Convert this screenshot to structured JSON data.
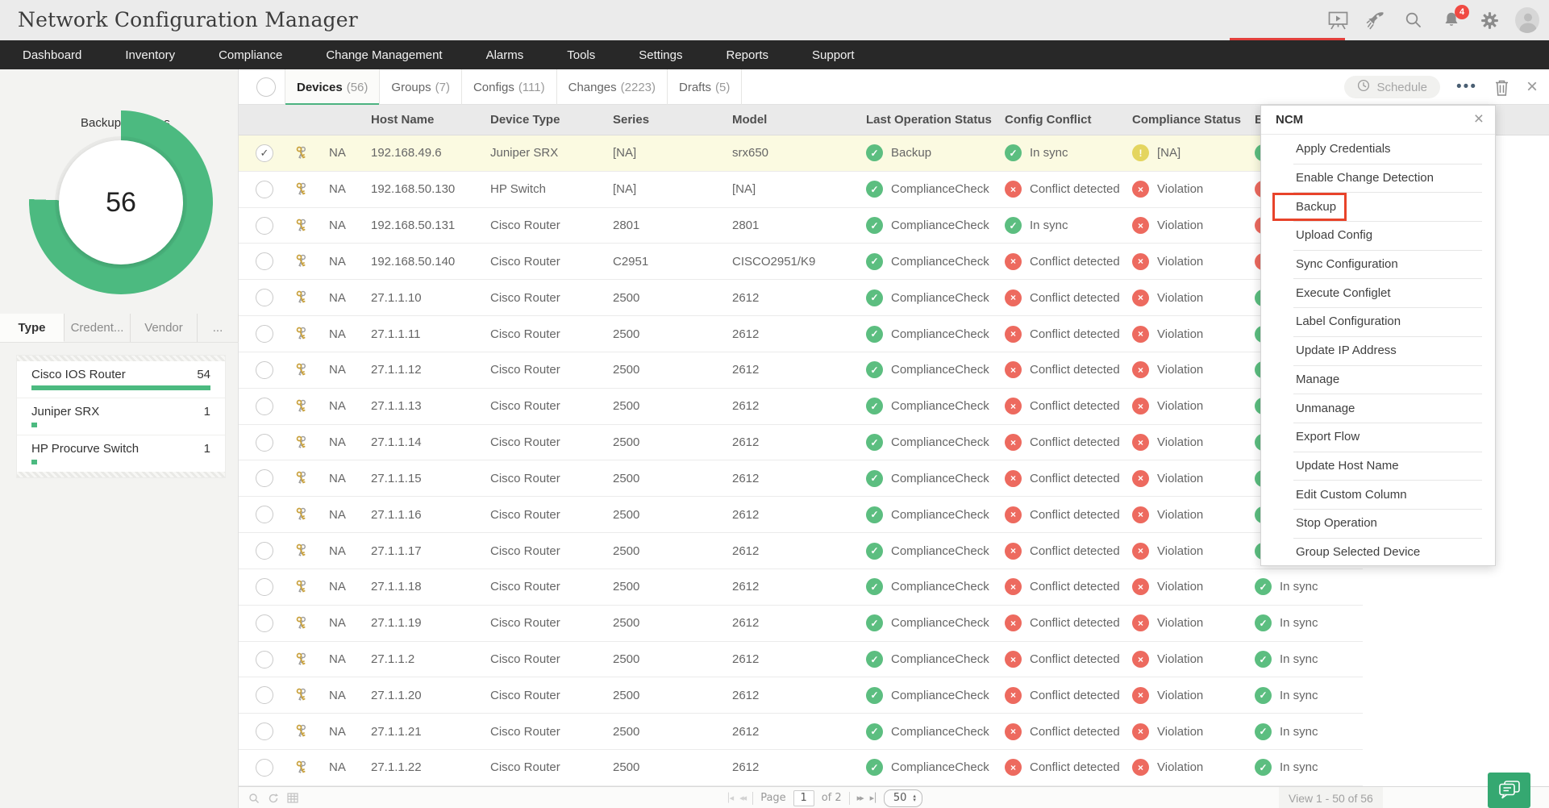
{
  "app": {
    "title": "Network Configuration Manager",
    "notification_count": "4"
  },
  "header_icons": [
    {
      "name": "presentation-icon"
    },
    {
      "name": "rocket-icon"
    },
    {
      "name": "search-icon"
    },
    {
      "name": "bell-icon"
    },
    {
      "name": "gear-icon"
    },
    {
      "name": "user-avatar"
    }
  ],
  "nav": {
    "items": [
      "Dashboard",
      "Inventory",
      "Compliance",
      "Change Management",
      "Alarms",
      "Tools",
      "Settings",
      "Reports",
      "Support"
    ]
  },
  "tabs": [
    {
      "label": "Devices",
      "count": "(56)",
      "active": true
    },
    {
      "label": "Groups",
      "count": "(7)",
      "active": false
    },
    {
      "label": "Configs",
      "count": "(111)",
      "active": false
    },
    {
      "label": "Changes",
      "count": "(2223)",
      "active": false
    },
    {
      "label": "Drafts",
      "count": "(5)",
      "active": false
    }
  ],
  "toolbar": {
    "schedule_label": "Schedule"
  },
  "sidebar": {
    "chart": {
      "label": "Backup Success",
      "value": "56",
      "sweep_deg": 272,
      "color": "#4cba80"
    },
    "tabs": [
      {
        "label": "Type",
        "active": true
      },
      {
        "label": "Credent...",
        "active": false
      },
      {
        "label": "Vendor",
        "active": false
      },
      {
        "label": "...",
        "active": false
      }
    ],
    "legend": [
      {
        "name": "Cisco IOS Router",
        "count": "54",
        "bar_pct": 100
      },
      {
        "name": "Juniper SRX",
        "count": "1",
        "bar_pct": 3
      },
      {
        "name": "HP Procurve Switch",
        "count": "1",
        "bar_pct": 3
      }
    ]
  },
  "chart_data": {
    "type": "pie",
    "title": "Backup Success",
    "values": [
      {
        "label": "Backup Success",
        "value": 56
      }
    ],
    "breakdown_by_type": [
      {
        "label": "Cisco IOS Router",
        "value": 54
      },
      {
        "label": "Juniper SRX",
        "value": 1
      },
      {
        "label": "HP Procurve Switch",
        "value": 1
      }
    ]
  },
  "table": {
    "columns": [
      "Host Name",
      "Device Type",
      "Series",
      "Model",
      "Last Operation Status",
      "Config Conflict",
      "Compliance Status",
      "Baseline"
    ],
    "rows": [
      {
        "selected": true,
        "na": "NA",
        "host": "192.168.49.6",
        "device_type": "Juniper SRX",
        "series": "[NA]",
        "model": "srx650",
        "last_op": {
          "status": "green",
          "label": "Backup"
        },
        "config_conflict": {
          "status": "green",
          "label": "In sync"
        },
        "compliance": {
          "status": "yellow",
          "label": "[NA]"
        },
        "baseline": {
          "status": "green",
          "label": ""
        }
      },
      {
        "selected": false,
        "na": "NA",
        "host": "192.168.50.130",
        "device_type": "HP Switch",
        "series": "[NA]",
        "model": "[NA]",
        "last_op": {
          "status": "green",
          "label": "ComplianceCheck"
        },
        "config_conflict": {
          "status": "red",
          "label": "Conflict detected"
        },
        "compliance": {
          "status": "red",
          "label": "Violation"
        },
        "baseline": {
          "status": "red",
          "label": ""
        }
      },
      {
        "selected": false,
        "na": "NA",
        "host": "192.168.50.131",
        "device_type": "Cisco Router",
        "series": "2801",
        "model": "2801",
        "last_op": {
          "status": "green",
          "label": "ComplianceCheck"
        },
        "config_conflict": {
          "status": "green",
          "label": "In sync"
        },
        "compliance": {
          "status": "red",
          "label": "Violation"
        },
        "baseline": {
          "status": "red",
          "label": ""
        }
      },
      {
        "selected": false,
        "na": "NA",
        "host": "192.168.50.140",
        "device_type": "Cisco Router",
        "series": "C2951",
        "model": "CISCO2951/K9",
        "last_op": {
          "status": "green",
          "label": "ComplianceCheck"
        },
        "config_conflict": {
          "status": "red",
          "label": "Conflict detected"
        },
        "compliance": {
          "status": "red",
          "label": "Violation"
        },
        "baseline": {
          "status": "red",
          "label": ""
        }
      },
      {
        "selected": false,
        "na": "NA",
        "host": "27.1.1.10",
        "device_type": "Cisco Router",
        "series": "2500",
        "model": "2612",
        "last_op": {
          "status": "green",
          "label": "ComplianceCheck"
        },
        "config_conflict": {
          "status": "red",
          "label": "Conflict detected"
        },
        "compliance": {
          "status": "red",
          "label": "Violation"
        },
        "baseline": {
          "status": "green",
          "label": ""
        }
      },
      {
        "selected": false,
        "na": "NA",
        "host": "27.1.1.11",
        "device_type": "Cisco Router",
        "series": "2500",
        "model": "2612",
        "last_op": {
          "status": "green",
          "label": "ComplianceCheck"
        },
        "config_conflict": {
          "status": "red",
          "label": "Conflict detected"
        },
        "compliance": {
          "status": "red",
          "label": "Violation"
        },
        "baseline": {
          "status": "green",
          "label": ""
        }
      },
      {
        "selected": false,
        "na": "NA",
        "host": "27.1.1.12",
        "device_type": "Cisco Router",
        "series": "2500",
        "model": "2612",
        "last_op": {
          "status": "green",
          "label": "ComplianceCheck"
        },
        "config_conflict": {
          "status": "red",
          "label": "Conflict detected"
        },
        "compliance": {
          "status": "red",
          "label": "Violation"
        },
        "baseline": {
          "status": "green",
          "label": ""
        }
      },
      {
        "selected": false,
        "na": "NA",
        "host": "27.1.1.13",
        "device_type": "Cisco Router",
        "series": "2500",
        "model": "2612",
        "last_op": {
          "status": "green",
          "label": "ComplianceCheck"
        },
        "config_conflict": {
          "status": "red",
          "label": "Conflict detected"
        },
        "compliance": {
          "status": "red",
          "label": "Violation"
        },
        "baseline": {
          "status": "green",
          "label": ""
        }
      },
      {
        "selected": false,
        "na": "NA",
        "host": "27.1.1.14",
        "device_type": "Cisco Router",
        "series": "2500",
        "model": "2612",
        "last_op": {
          "status": "green",
          "label": "ComplianceCheck"
        },
        "config_conflict": {
          "status": "red",
          "label": "Conflict detected"
        },
        "compliance": {
          "status": "red",
          "label": "Violation"
        },
        "baseline": {
          "status": "green",
          "label": ""
        }
      },
      {
        "selected": false,
        "na": "NA",
        "host": "27.1.1.15",
        "device_type": "Cisco Router",
        "series": "2500",
        "model": "2612",
        "last_op": {
          "status": "green",
          "label": "ComplianceCheck"
        },
        "config_conflict": {
          "status": "red",
          "label": "Conflict detected"
        },
        "compliance": {
          "status": "red",
          "label": "Violation"
        },
        "baseline": {
          "status": "green",
          "label": ""
        }
      },
      {
        "selected": false,
        "na": "NA",
        "host": "27.1.1.16",
        "device_type": "Cisco Router",
        "series": "2500",
        "model": "2612",
        "last_op": {
          "status": "green",
          "label": "ComplianceCheck"
        },
        "config_conflict": {
          "status": "red",
          "label": "Conflict detected"
        },
        "compliance": {
          "status": "red",
          "label": "Violation"
        },
        "baseline": {
          "status": "green",
          "label": ""
        }
      },
      {
        "selected": false,
        "na": "NA",
        "host": "27.1.1.17",
        "device_type": "Cisco Router",
        "series": "2500",
        "model": "2612",
        "last_op": {
          "status": "green",
          "label": "ComplianceCheck"
        },
        "config_conflict": {
          "status": "red",
          "label": "Conflict detected"
        },
        "compliance": {
          "status": "red",
          "label": "Violation"
        },
        "baseline": {
          "status": "green",
          "label": ""
        }
      },
      {
        "selected": false,
        "na": "NA",
        "host": "27.1.1.18",
        "device_type": "Cisco Router",
        "series": "2500",
        "model": "2612",
        "last_op": {
          "status": "green",
          "label": "ComplianceCheck"
        },
        "config_conflict": {
          "status": "red",
          "label": "Conflict detected"
        },
        "compliance": {
          "status": "red",
          "label": "Violation"
        },
        "baseline": {
          "status": "green",
          "label": "In sync"
        }
      },
      {
        "selected": false,
        "na": "NA",
        "host": "27.1.1.19",
        "device_type": "Cisco Router",
        "series": "2500",
        "model": "2612",
        "last_op": {
          "status": "green",
          "label": "ComplianceCheck"
        },
        "config_conflict": {
          "status": "red",
          "label": "Conflict detected"
        },
        "compliance": {
          "status": "red",
          "label": "Violation"
        },
        "baseline": {
          "status": "green",
          "label": "In sync"
        }
      },
      {
        "selected": false,
        "na": "NA",
        "host": "27.1.1.2",
        "device_type": "Cisco Router",
        "series": "2500",
        "model": "2612",
        "last_op": {
          "status": "green",
          "label": "ComplianceCheck"
        },
        "config_conflict": {
          "status": "red",
          "label": "Conflict detected"
        },
        "compliance": {
          "status": "red",
          "label": "Violation"
        },
        "baseline": {
          "status": "green",
          "label": "In sync"
        }
      },
      {
        "selected": false,
        "na": "NA",
        "host": "27.1.1.20",
        "device_type": "Cisco Router",
        "series": "2500",
        "model": "2612",
        "last_op": {
          "status": "green",
          "label": "ComplianceCheck"
        },
        "config_conflict": {
          "status": "red",
          "label": "Conflict detected"
        },
        "compliance": {
          "status": "red",
          "label": "Violation"
        },
        "baseline": {
          "status": "green",
          "label": "In sync"
        }
      },
      {
        "selected": false,
        "na": "NA",
        "host": "27.1.1.21",
        "device_type": "Cisco Router",
        "series": "2500",
        "model": "2612",
        "last_op": {
          "status": "green",
          "label": "ComplianceCheck"
        },
        "config_conflict": {
          "status": "red",
          "label": "Conflict detected"
        },
        "compliance": {
          "status": "red",
          "label": "Violation"
        },
        "baseline": {
          "status": "green",
          "label": "In sync"
        }
      },
      {
        "selected": false,
        "na": "NA",
        "host": "27.1.1.22",
        "device_type": "Cisco Router",
        "series": "2500",
        "model": "2612",
        "last_op": {
          "status": "green",
          "label": "ComplianceCheck"
        },
        "config_conflict": {
          "status": "red",
          "label": "Conflict detected"
        },
        "compliance": {
          "status": "red",
          "label": "Violation"
        },
        "baseline": {
          "status": "green",
          "label": "In sync"
        }
      }
    ]
  },
  "menu": {
    "title": "NCM",
    "items": [
      {
        "label": "Apply Credentials",
        "highlighted": false
      },
      {
        "label": "Enable Change Detection",
        "highlighted": false
      },
      {
        "label": "Backup",
        "highlighted": true
      },
      {
        "label": "Upload Config",
        "highlighted": false
      },
      {
        "label": "Sync Configuration",
        "highlighted": false
      },
      {
        "label": "Execute Configlet",
        "highlighted": false
      },
      {
        "label": "Label Configuration",
        "highlighted": false
      },
      {
        "label": "Update IP Address",
        "highlighted": false
      },
      {
        "label": "Manage",
        "highlighted": false
      },
      {
        "label": "Unmanage",
        "highlighted": false
      },
      {
        "label": "Export Flow",
        "highlighted": false
      },
      {
        "label": "Update Host Name",
        "highlighted": false
      },
      {
        "label": "Edit Custom Column",
        "highlighted": false
      },
      {
        "label": "Stop Operation",
        "highlighted": false
      },
      {
        "label": "Group Selected Device",
        "highlighted": false
      }
    ]
  },
  "footer": {
    "icons": [
      "zoom-icon",
      "refresh-icon",
      "grid-icon"
    ],
    "page_label": "Page",
    "page_value": "1",
    "page_of": "of 2",
    "page_size": "50",
    "view_text": "View 1 - 50 of 56"
  },
  "colors": {
    "accent_green": "#4cba80",
    "status_green": "#5cbe80",
    "status_red": "#ed6a5f",
    "status_yellow": "#e4d55f",
    "highlight_red": "#e8432a",
    "selected_row": "#fbfae1",
    "nav_bg": "#282828"
  }
}
